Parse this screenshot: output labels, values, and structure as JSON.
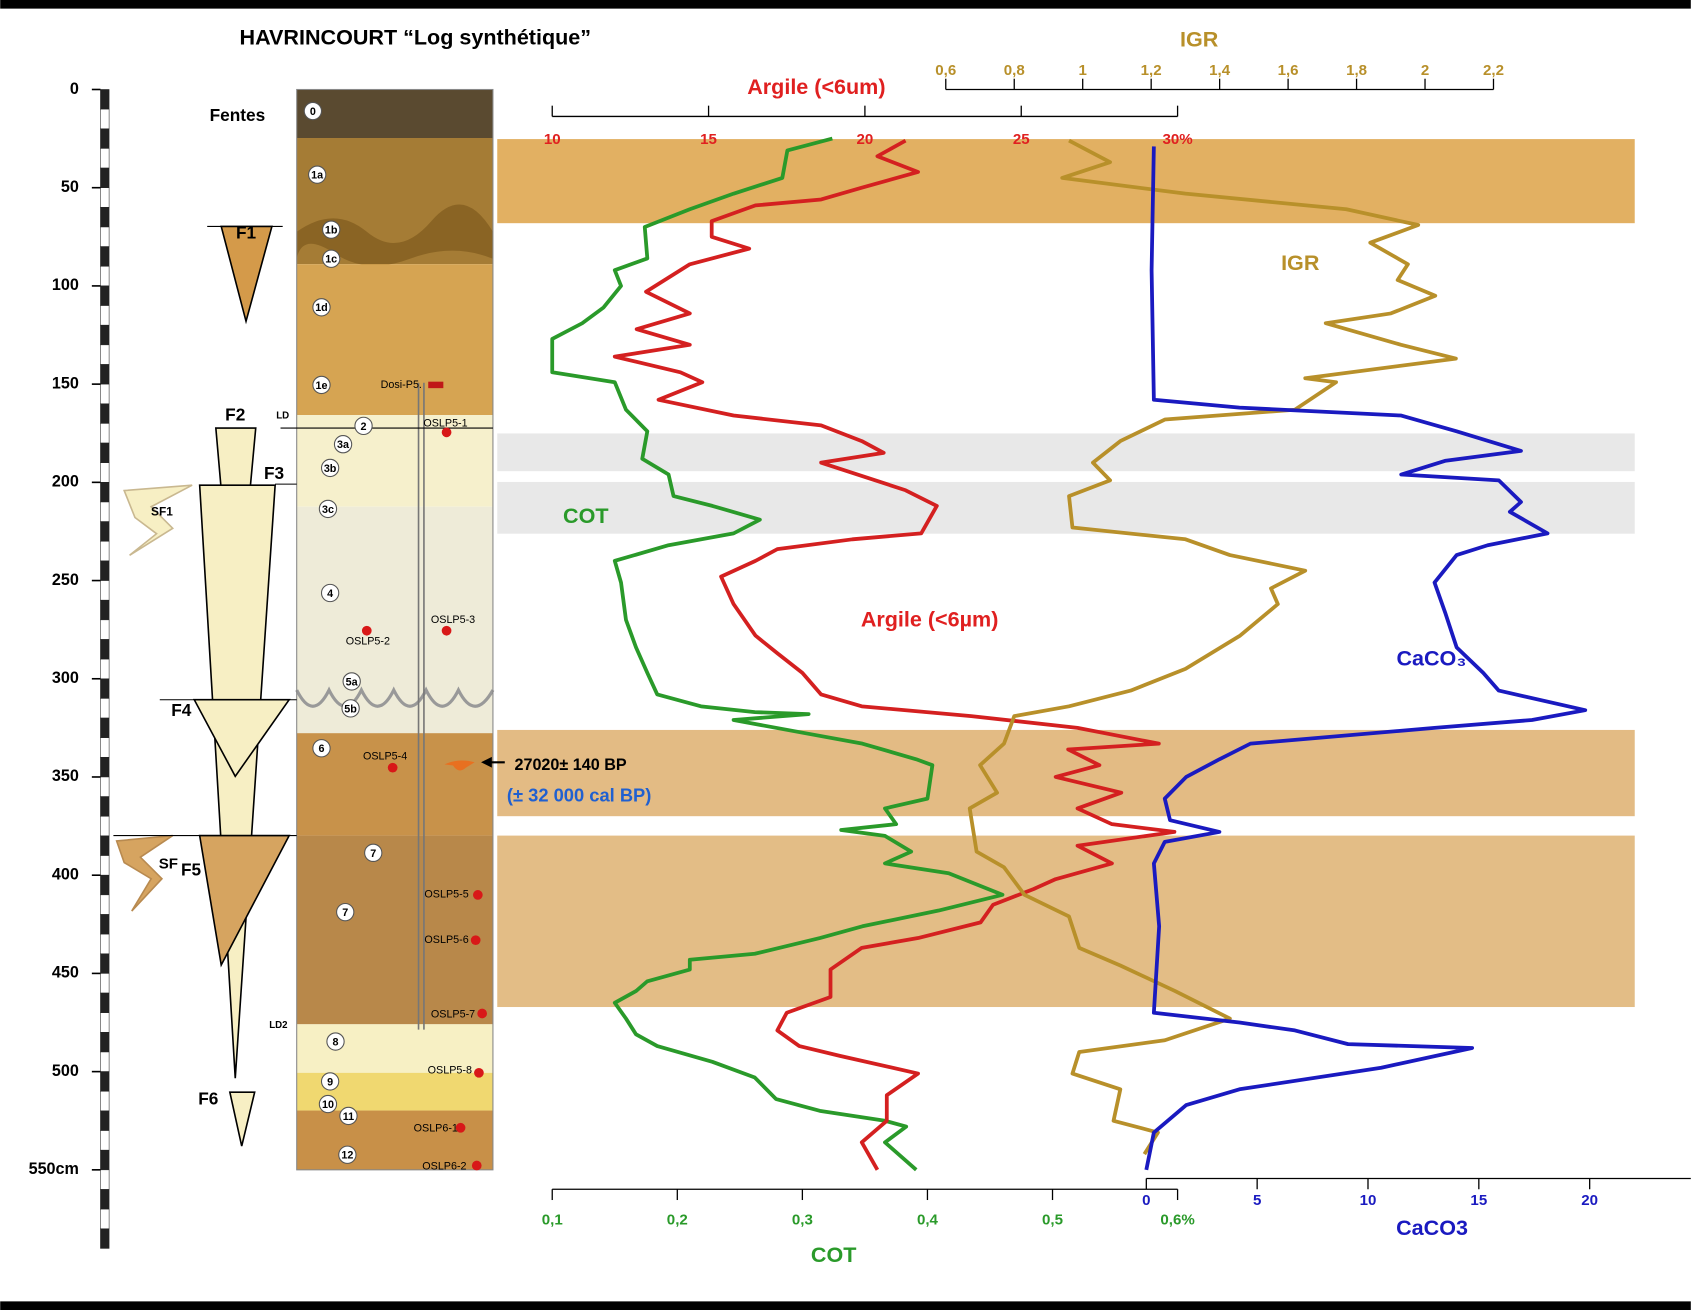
{
  "chart_data": {
    "type": "line",
    "title": "HAVRINCOURT “Log synthétique”",
    "ylim": [
      0,
      550
    ],
    "yticks": [
      0,
      50,
      100,
      150,
      200,
      250,
      300,
      350,
      400,
      450,
      500,
      {
        "value": 550,
        "label": "550cm"
      }
    ],
    "series": [
      {
        "name": "COT",
        "axis_label": "COT",
        "color": "#2a9a2a",
        "xlim": [
          0.1,
          0.6
        ],
        "xticks": [
          {
            "value": 0.1,
            "label": "0,1"
          },
          {
            "value": 0.2,
            "label": "0,2"
          },
          {
            "value": 0.3,
            "label": "0,3"
          },
          {
            "value": 0.4,
            "label": "0,4"
          },
          {
            "value": 0.5,
            "label": "0,5"
          },
          {
            "value": 0.6,
            "label": "0,6%"
          }
        ],
        "depth": [
          25,
          31,
          45,
          53,
          61,
          70,
          86,
          92,
          100,
          111,
          119,
          127,
          144,
          149,
          163,
          174,
          188,
          196,
          207,
          212,
          219,
          226,
          232,
          240,
          251,
          270,
          284,
          297,
          308,
          314,
          317,
          318,
          321,
          328,
          333,
          341,
          344,
          361,
          366,
          374,
          377,
          380,
          388,
          394,
          399,
          410,
          418,
          426,
          432,
          440,
          443,
          448,
          454,
          459,
          465,
          473,
          481,
          487,
          495,
          503,
          514,
          520,
          525,
          528,
          536,
          550
        ],
        "values": [
          0.324,
          0.288,
          0.284,
          0.245,
          0.21,
          0.174,
          0.176,
          0.15,
          0.155,
          0.141,
          0.124,
          0.1,
          0.1,
          0.15,
          0.159,
          0.176,
          0.172,
          0.193,
          0.197,
          0.228,
          0.266,
          0.245,
          0.193,
          0.15,
          0.155,
          0.159,
          0.167,
          0.176,
          0.184,
          0.219,
          0.262,
          0.305,
          0.245,
          0.305,
          0.348,
          0.391,
          0.404,
          0.4,
          0.366,
          0.375,
          0.331,
          0.366,
          0.387,
          0.366,
          0.417,
          0.46,
          0.409,
          0.348,
          0.314,
          0.262,
          0.21,
          0.21,
          0.176,
          0.167,
          0.15,
          0.159,
          0.167,
          0.184,
          0.228,
          0.262,
          0.279,
          0.314,
          0.366,
          0.383,
          0.366,
          0.391
        ]
      },
      {
        "name": "Argile (<6µm)",
        "axis_label": "Argile (<6um)",
        "color": "#d42020",
        "xlim": [
          10,
          30
        ],
        "xticks": [
          10,
          15,
          20,
          25,
          {
            "value": 30,
            "label": "30%"
          }
        ],
        "depth": [
          26,
          34,
          42,
          50,
          56,
          59,
          67,
          75,
          81,
          89,
          103,
          114,
          122,
          130,
          136,
          144,
          149,
          158,
          166,
          171,
          179,
          185,
          190,
          204,
          212,
          226,
          229,
          234,
          240,
          248,
          262,
          278,
          287,
          297,
          308,
          314,
          319,
          325,
          333,
          336,
          344,
          350,
          358,
          366,
          374,
          378,
          385,
          394,
          402,
          407,
          415,
          424,
          432,
          437,
          448,
          462,
          470,
          479,
          487,
          492,
          501,
          512,
          525,
          536,
          550
        ],
        "values": [
          21.3,
          20.4,
          21.7,
          19.9,
          18.6,
          16.5,
          15.1,
          15.1,
          16.3,
          14.4,
          13.0,
          14.4,
          12.7,
          14.4,
          12.0,
          14.1,
          14.8,
          13.4,
          15.8,
          18.6,
          19.9,
          20.6,
          18.6,
          21.3,
          22.3,
          21.8,
          19.6,
          17.2,
          16.5,
          15.4,
          15.8,
          16.5,
          17.2,
          18.0,
          18.6,
          19.9,
          23.4,
          26.8,
          29.4,
          26.5,
          27.5,
          26.1,
          28.2,
          26.8,
          27.9,
          29.9,
          26.8,
          27.9,
          26.1,
          25.4,
          24.1,
          23.7,
          21.7,
          19.9,
          18.9,
          18.9,
          17.5,
          17.2,
          17.9,
          19.2,
          21.7,
          20.7,
          20.7,
          19.9,
          20.4
        ]
      },
      {
        "name": "IGR",
        "axis_label": "IGR",
        "color": "#b8902a",
        "xlim": [
          0.6,
          2.2
        ],
        "xticks": [
          {
            "value": 0.6,
            "label": "0,6"
          },
          {
            "value": 0.8,
            "label": "0,8"
          },
          1,
          {
            "value": 1.2,
            "label": "1,2"
          },
          {
            "value": 1.4,
            "label": "1,4"
          },
          {
            "value": 1.6,
            "label": "1,6"
          },
          {
            "value": 1.8,
            "label": "1,8"
          },
          2,
          {
            "value": 2.2,
            "label": "2,2"
          }
        ],
        "depth": [
          26,
          37,
          45,
          53,
          61,
          69,
          78,
          89,
          97,
          105,
          114,
          119,
          130,
          137,
          147,
          149,
          163,
          168,
          179,
          190,
          199,
          207,
          223,
          229,
          237,
          245,
          254,
          262,
          278,
          295,
          306,
          314,
          319,
          333,
          344,
          358,
          366,
          388,
          396,
          410,
          421,
          437,
          446,
          459,
          473,
          484,
          490,
          501,
          509,
          525,
          531,
          542
        ],
        "values": [
          0.96,
          1.08,
          0.94,
          1.3,
          1.77,
          1.98,
          1.84,
          1.95,
          1.92,
          2.03,
          1.9,
          1.71,
          1.93,
          2.09,
          1.65,
          1.74,
          1.62,
          1.24,
          1.11,
          1.03,
          1.08,
          0.96,
          0.97,
          1.3,
          1.43,
          1.65,
          1.55,
          1.57,
          1.46,
          1.3,
          1.14,
          0.96,
          0.8,
          0.77,
          0.7,
          0.75,
          0.67,
          0.69,
          0.77,
          0.83,
          0.96,
          0.99,
          1.11,
          1.27,
          1.43,
          1.24,
          0.99,
          0.97,
          1.11,
          1.09,
          1.22,
          1.18
        ]
      },
      {
        "name": "CaCO₃",
        "axis_label": "CaCO3",
        "color": "#1a1ac0",
        "xlim": [
          0,
          25
        ],
        "xticks": [
          0,
          5,
          10,
          15,
          20
        ],
        "depth": [
          29,
          92,
          158,
          162,
          166,
          174,
          184,
          189,
          196,
          199,
          210,
          215,
          226,
          232,
          237,
          251,
          267,
          284,
          297,
          306,
          316,
          321,
          325,
          333,
          341,
          350,
          361,
          372,
          378,
          383,
          394,
          426,
          470,
          475,
          479,
          486,
          488,
          498,
          509,
          517,
          531,
          550
        ],
        "values": [
          0.34,
          0.24,
          0.34,
          4.2,
          11.5,
          14.0,
          16.9,
          13.5,
          11.5,
          15.9,
          16.9,
          16.4,
          18.1,
          15.4,
          14.0,
          13.0,
          13.5,
          14.0,
          15.2,
          15.9,
          19.8,
          17.4,
          13.0,
          4.7,
          3.3,
          1.8,
          0.83,
          1.07,
          3.3,
          0.83,
          0.34,
          0.58,
          0.34,
          4.2,
          6.7,
          9.1,
          14.7,
          10.6,
          4.2,
          1.8,
          0.34,
          0
        ]
      }
    ],
    "log": {
      "layers": [
        "0",
        "1a",
        "1b",
        "1c",
        "1d",
        "1e",
        "2",
        "3a",
        "3b",
        "3c",
        "4",
        "5a",
        "5b",
        "6",
        "7",
        "7",
        "8",
        "9",
        "10",
        "11",
        "12"
      ],
      "samples": [
        "Dosi-P5.",
        "OSLP5-1",
        "OSLP5-2",
        "OSLP5-3",
        "OSLP5-4",
        "OSLP5-5",
        "OSLP5-6",
        "OSLP5-7",
        "OSLP5-8",
        "OSLP6-1",
        "OSLP6-2"
      ],
      "faults": [
        "Fentes",
        "F1",
        "F2",
        "LD",
        "F3",
        "SF1",
        "F4",
        "SF",
        "F5",
        "LD2",
        "F6"
      ]
    },
    "annotations": [
      "27020± 140 BP",
      "(± 32 000 cal BP)"
    ]
  }
}
